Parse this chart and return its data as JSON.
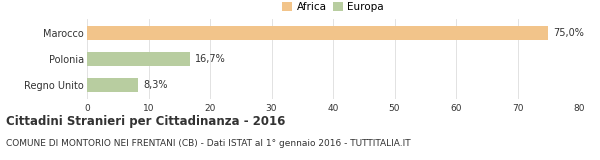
{
  "categories": [
    "Marocco",
    "Polonia",
    "Regno Unito"
  ],
  "values": [
    75.0,
    16.7,
    8.3
  ],
  "labels": [
    "75,0%",
    "16,7%",
    "8,3%"
  ],
  "colors": [
    "#f2c48a",
    "#b8cda0",
    "#b8cda0"
  ],
  "legend": [
    {
      "label": "Africa",
      "color": "#f2c48a"
    },
    {
      "label": "Europa",
      "color": "#b8cda0"
    }
  ],
  "xlim": [
    0,
    80
  ],
  "xticks": [
    0,
    10,
    20,
    30,
    40,
    50,
    60,
    70,
    80
  ],
  "title": "Cittadini Stranieri per Cittadinanza - 2016",
  "subtitle": "COMUNE DI MONTORIO NEI FRENTANI (CB) - Dati ISTAT al 1° gennaio 2016 - TUTTITALIA.IT",
  "title_fontsize": 8.5,
  "subtitle_fontsize": 6.5,
  "bar_height": 0.55,
  "background_color": "#ffffff",
  "grid_color": "#dddddd",
  "text_color": "#333333",
  "label_fontsize": 7,
  "tick_fontsize": 6.5,
  "category_fontsize": 7
}
